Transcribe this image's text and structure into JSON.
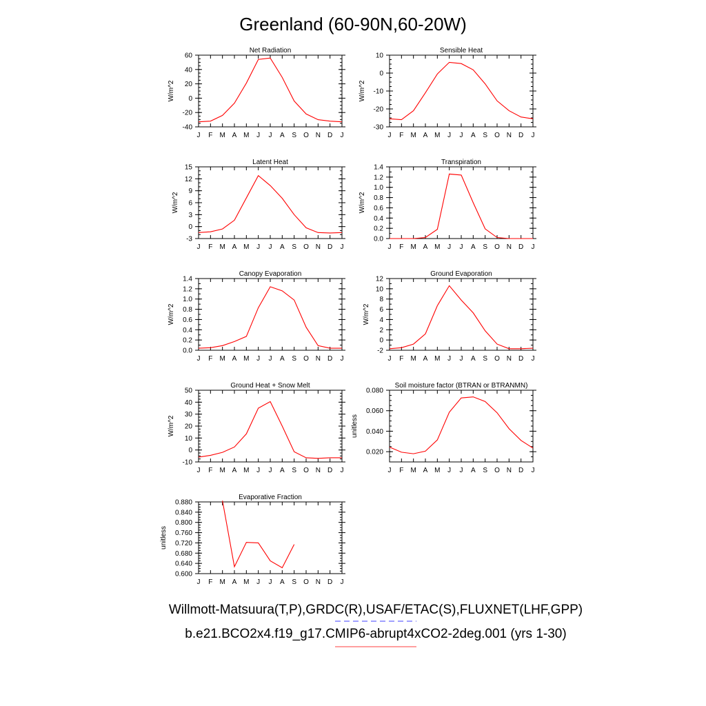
{
  "figure": {
    "title": "Greenland (60-90N,60-20W)",
    "caption_obs": "Willmott-Matsuura(T,P),GRDC(R),USAF/ETAC(S),FLUXNET(LHF,GPP)",
    "caption_model": "b.e21.BCO2x4.f19_g17.CMIP6-abrupt4xCO2-2deg.001 (yrs 1-30)",
    "obs_line_color": "#6666ff",
    "model_line_color": "#ff6666",
    "series_color": "#ff0000"
  },
  "chart_data": [
    {
      "type": "line",
      "title": "Net Radiation",
      "ylabel": "W/m^2",
      "x": [
        "J",
        "F",
        "M",
        "A",
        "M",
        "J",
        "J",
        "A",
        "S",
        "O",
        "N",
        "D",
        "J"
      ],
      "ylim": [
        -40,
        60
      ],
      "yticks": [
        -40,
        -20,
        0,
        20,
        40,
        60
      ],
      "ytick_labels": [
        "-40",
        "-20",
        "0",
        "20",
        "40",
        "60"
      ],
      "y_minor_step": 5,
      "values": [
        -33,
        -32,
        -24,
        -7,
        21,
        54,
        56,
        29,
        -4,
        -22,
        -30,
        -32,
        -33
      ]
    },
    {
      "type": "line",
      "title": "Sensible Heat",
      "ylabel": "W/m^2",
      "x": [
        "J",
        "F",
        "M",
        "A",
        "M",
        "J",
        "J",
        "A",
        "S",
        "O",
        "N",
        "D",
        "J"
      ],
      "ylim": [
        -30,
        10
      ],
      "yticks": [
        -30,
        -20,
        -10,
        0,
        10
      ],
      "ytick_labels": [
        "-30",
        "-20",
        "-10",
        "0",
        "10"
      ],
      "y_minor_step": 2.5,
      "values": [
        -25.5,
        -26,
        -21,
        -11,
        -0.5,
        6,
        5.3,
        1.8,
        -6,
        -15.5,
        -21,
        -24.5,
        -25.5
      ]
    },
    {
      "type": "line",
      "title": "Latent Heat",
      "ylabel": "W/m^2",
      "x": [
        "J",
        "F",
        "M",
        "A",
        "M",
        "J",
        "J",
        "A",
        "S",
        "O",
        "N",
        "D",
        "J"
      ],
      "ylim": [
        -3,
        15
      ],
      "yticks": [
        -3,
        0,
        3,
        6,
        9,
        12,
        15
      ],
      "ytick_labels": [
        "-3",
        "0",
        "3",
        "6",
        "9",
        "12",
        "15"
      ],
      "y_minor_step": 1,
      "values": [
        -1.5,
        -1.3,
        -0.6,
        1.6,
        7.2,
        12.8,
        10.3,
        7.1,
        3,
        -0.3,
        -1.5,
        -1.6,
        -1.5
      ]
    },
    {
      "type": "line",
      "title": "Transpiration",
      "ylabel": "W/m^2",
      "x": [
        "J",
        "F",
        "M",
        "A",
        "M",
        "J",
        "J",
        "A",
        "S",
        "O",
        "N",
        "D",
        "J"
      ],
      "ylim": [
        0,
        1.4
      ],
      "yticks": [
        0,
        0.2,
        0.4,
        0.6,
        0.8,
        1.0,
        1.2,
        1.4
      ],
      "ytick_labels": [
        "0.0",
        "0.2",
        "0.4",
        "0.6",
        "0.8",
        "1.0",
        "1.2",
        "1.4"
      ],
      "y_minor_step": 0.1,
      "values": [
        0,
        0,
        0,
        0.02,
        0.18,
        1.26,
        1.24,
        0.7,
        0.19,
        0.02,
        0,
        0,
        0
      ]
    },
    {
      "type": "line",
      "title": "Canopy Evaporation",
      "ylabel": "W/m^2",
      "x": [
        "J",
        "F",
        "M",
        "A",
        "M",
        "J",
        "J",
        "A",
        "S",
        "O",
        "N",
        "D",
        "J"
      ],
      "ylim": [
        0,
        1.4
      ],
      "yticks": [
        0,
        0.2,
        0.4,
        0.6,
        0.8,
        1.0,
        1.2,
        1.4
      ],
      "ytick_labels": [
        "0.0",
        "0.2",
        "0.4",
        "0.6",
        "0.8",
        "1.0",
        "1.2",
        "1.4"
      ],
      "y_minor_step": 0.1,
      "values": [
        0.04,
        0.05,
        0.09,
        0.17,
        0.27,
        0.83,
        1.24,
        1.16,
        0.98,
        0.45,
        0.09,
        0.04,
        0.04
      ]
    },
    {
      "type": "line",
      "title": "Ground Evaporation",
      "ylabel": "W/m^2",
      "x": [
        "J",
        "F",
        "M",
        "A",
        "M",
        "J",
        "J",
        "A",
        "S",
        "O",
        "N",
        "D",
        "J"
      ],
      "ylim": [
        -2,
        12
      ],
      "yticks": [
        -2,
        0,
        2,
        4,
        6,
        8,
        10,
        12
      ],
      "ytick_labels": [
        "-2",
        "0",
        "2",
        "4",
        "6",
        "8",
        "10",
        "12"
      ],
      "y_minor_step": 1,
      "values": [
        -1.7,
        -1.5,
        -0.8,
        1.2,
        6.7,
        10.6,
        7.8,
        5.3,
        1.8,
        -0.8,
        -1.7,
        -1.7,
        -1.6
      ]
    },
    {
      "type": "line",
      "title": "Ground Heat + Snow Melt",
      "ylabel": "W/m^2",
      "x": [
        "J",
        "F",
        "M",
        "A",
        "M",
        "J",
        "J",
        "A",
        "S",
        "O",
        "N",
        "D",
        "J"
      ],
      "ylim": [
        -10,
        50
      ],
      "yticks": [
        -10,
        0,
        10,
        20,
        30,
        40,
        50
      ],
      "ytick_labels": [
        "-10",
        "0",
        "10",
        "20",
        "30",
        "40",
        "50"
      ],
      "y_minor_step": 2.5,
      "values": [
        -6,
        -4.5,
        -2,
        2.5,
        13.5,
        35,
        40.5,
        20,
        -1.5,
        -6.5,
        -7,
        -6.5,
        -6.5
      ]
    },
    {
      "type": "line",
      "title": "Soil moisture factor (BTRAN or BTRANMN)",
      "ylabel": "unitless",
      "x": [
        "J",
        "F",
        "M",
        "A",
        "M",
        "J",
        "J",
        "A",
        "S",
        "O",
        "N",
        "D",
        "J"
      ],
      "ylim": [
        0.01,
        0.08
      ],
      "yticks": [
        0.02,
        0.04,
        0.06,
        0.08
      ],
      "ytick_labels": [
        "0.020",
        "0.040",
        "0.060",
        "0.080"
      ],
      "y_minor_step": 0.005,
      "values": [
        0.0245,
        0.0195,
        0.018,
        0.0205,
        0.0315,
        0.0585,
        0.0725,
        0.0735,
        0.069,
        0.058,
        0.0425,
        0.031,
        0.0235
      ]
    },
    {
      "type": "line",
      "title": "Evaporative Fraction",
      "ylabel": "unitless",
      "x": [
        "J",
        "F",
        "M",
        "A",
        "M",
        "J",
        "J",
        "A",
        "S",
        "O",
        "N",
        "D",
        "J"
      ],
      "ylim": [
        0.6,
        0.88
      ],
      "yticks": [
        0.6,
        0.64,
        0.68,
        0.72,
        0.76,
        0.8,
        0.84,
        0.88
      ],
      "ytick_labels": [
        "0.600",
        "0.640",
        "0.680",
        "0.720",
        "0.760",
        "0.800",
        "0.840",
        "0.880"
      ],
      "y_minor_step": 0.01,
      "values": [
        null,
        null,
        0.885,
        0.627,
        0.722,
        0.72,
        0.65,
        0.623,
        0.714,
        null,
        null,
        null,
        null
      ]
    }
  ]
}
